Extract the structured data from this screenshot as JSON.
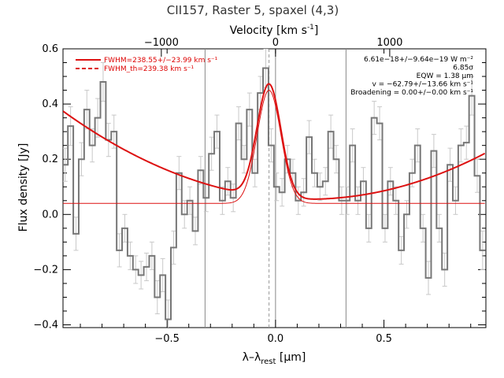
{
  "chart_data": {
    "type": "line",
    "title": "CII157, Raster 5, spaxel (4,3)",
    "xlabel": "λ–λrest [μm]",
    "xlabel_parts": {
      "main": "λ–λ",
      "sub": "rest",
      "unit": " [μm]"
    },
    "ylabel": "Flux density [Jy]",
    "top_xlabel": "Velocity [km s⁻¹]",
    "top_xlabel_parts": {
      "main": "Velocity [km s",
      "sup": "-1",
      "end": "]"
    },
    "xlim": [
      -0.98,
      0.97
    ],
    "ylim": [
      -0.41,
      0.6
    ],
    "x_ticks": [
      -0.5,
      0.0,
      0.5
    ],
    "x_tick_labels": [
      "−0.5",
      "0.0",
      "0.5"
    ],
    "y_ticks": [
      -0.4,
      -0.2,
      0.0,
      0.2,
      0.4,
      0.6
    ],
    "y_tick_labels": [
      "−0.4",
      "−0.2",
      "0.0",
      "0.2",
      "0.4",
      "0.6"
    ],
    "top_ticks": [
      -1000,
      0,
      1000
    ],
    "top_tick_labels": [
      "−1000",
      "0",
      "1000"
    ],
    "km_per_um": 1899,
    "vertical_lines": [
      -0.325,
      0.0,
      0.325
    ],
    "dashed_line": -0.03,
    "spectrum": {
      "name": "data",
      "color": "#777777",
      "x": [
        -0.97,
        -0.945,
        -0.92,
        -0.895,
        -0.87,
        -0.845,
        -0.82,
        -0.795,
        -0.77,
        -0.745,
        -0.72,
        -0.695,
        -0.67,
        -0.645,
        -0.62,
        -0.595,
        -0.57,
        -0.545,
        -0.52,
        -0.495,
        -0.47,
        -0.445,
        -0.42,
        -0.395,
        -0.37,
        -0.345,
        -0.32,
        -0.295,
        -0.27,
        -0.245,
        -0.22,
        -0.195,
        -0.17,
        -0.145,
        -0.12,
        -0.095,
        -0.07,
        -0.045,
        -0.02,
        0.005,
        0.03,
        0.055,
        0.08,
        0.105,
        0.13,
        0.155,
        0.18,
        0.205,
        0.23,
        0.255,
        0.28,
        0.305,
        0.33,
        0.355,
        0.38,
        0.405,
        0.43,
        0.455,
        0.48,
        0.505,
        0.53,
        0.555,
        0.58,
        0.605,
        0.63,
        0.655,
        0.68,
        0.705,
        0.73,
        0.755,
        0.78,
        0.805,
        0.83,
        0.855,
        0.88,
        0.905,
        0.93,
        0.955
      ],
      "y": [
        0.18,
        0.32,
        -0.07,
        0.2,
        0.38,
        0.25,
        0.35,
        0.48,
        0.27,
        0.3,
        -0.13,
        -0.05,
        -0.15,
        -0.2,
        -0.22,
        -0.19,
        -0.15,
        -0.3,
        -0.22,
        -0.38,
        -0.12,
        0.15,
        0.0,
        0.05,
        -0.06,
        0.16,
        0.06,
        0.22,
        0.3,
        0.05,
        0.12,
        0.06,
        0.33,
        0.2,
        0.38,
        0.15,
        0.44,
        0.53,
        0.25,
        0.1,
        0.08,
        0.2,
        0.15,
        0.05,
        0.08,
        0.28,
        0.15,
        0.1,
        0.12,
        0.3,
        0.2,
        0.05,
        0.05,
        0.25,
        0.05,
        0.12,
        -0.05,
        0.35,
        0.33,
        -0.05,
        0.12,
        0.05,
        -0.13,
        0.0,
        0.15,
        0.25,
        -0.05,
        -0.23,
        0.23,
        -0.05,
        -0.2,
        0.18,
        0.05,
        0.25,
        0.26,
        0.43,
        0.14,
        -0.13
      ],
      "err": [
        0.06,
        0.07,
        0.06,
        0.06,
        0.07,
        0.06,
        0.07,
        0.07,
        0.06,
        0.06,
        0.06,
        0.05,
        0.05,
        0.05,
        0.05,
        0.05,
        0.05,
        0.06,
        0.06,
        0.07,
        0.06,
        0.06,
        0.05,
        0.05,
        0.05,
        0.05,
        0.05,
        0.06,
        0.06,
        0.05,
        0.05,
        0.05,
        0.06,
        0.05,
        0.06,
        0.05,
        0.06,
        0.07,
        0.06,
        0.05,
        0.05,
        0.05,
        0.05,
        0.05,
        0.05,
        0.06,
        0.05,
        0.05,
        0.05,
        0.06,
        0.05,
        0.05,
        0.05,
        0.06,
        0.05,
        0.05,
        0.05,
        0.06,
        0.06,
        0.05,
        0.05,
        0.05,
        0.05,
        0.05,
        0.05,
        0.06,
        0.05,
        0.06,
        0.06,
        0.05,
        0.06,
        0.06,
        0.05,
        0.06,
        0.06,
        0.07,
        0.06,
        0.07
      ]
    },
    "fit": {
      "color": "#dd1111",
      "baseline_poly": {
        "a": 0.055,
        "x0": 0.15,
        "b": 0.25
      },
      "gaussian": {
        "amp": 0.41,
        "center": -0.03,
        "sigma": 0.055
      },
      "thin_baseline_y": 0.04
    },
    "legend": [
      {
        "label": "FWHM=238.55+/−23.99 km s⁻¹",
        "style": "solid"
      },
      {
        "label": "FWHM_th=239.38 km s⁻¹",
        "style": "dashed"
      }
    ],
    "annotations": [
      "6.61e−18+/−9.64e−19 W m⁻²",
      "6.85σ",
      "EQW = 1.38 μm",
      "v = −62.79+/−13.66 km s⁻¹",
      "Broadening = 0.00+/−0.00 km s⁻¹"
    ]
  }
}
